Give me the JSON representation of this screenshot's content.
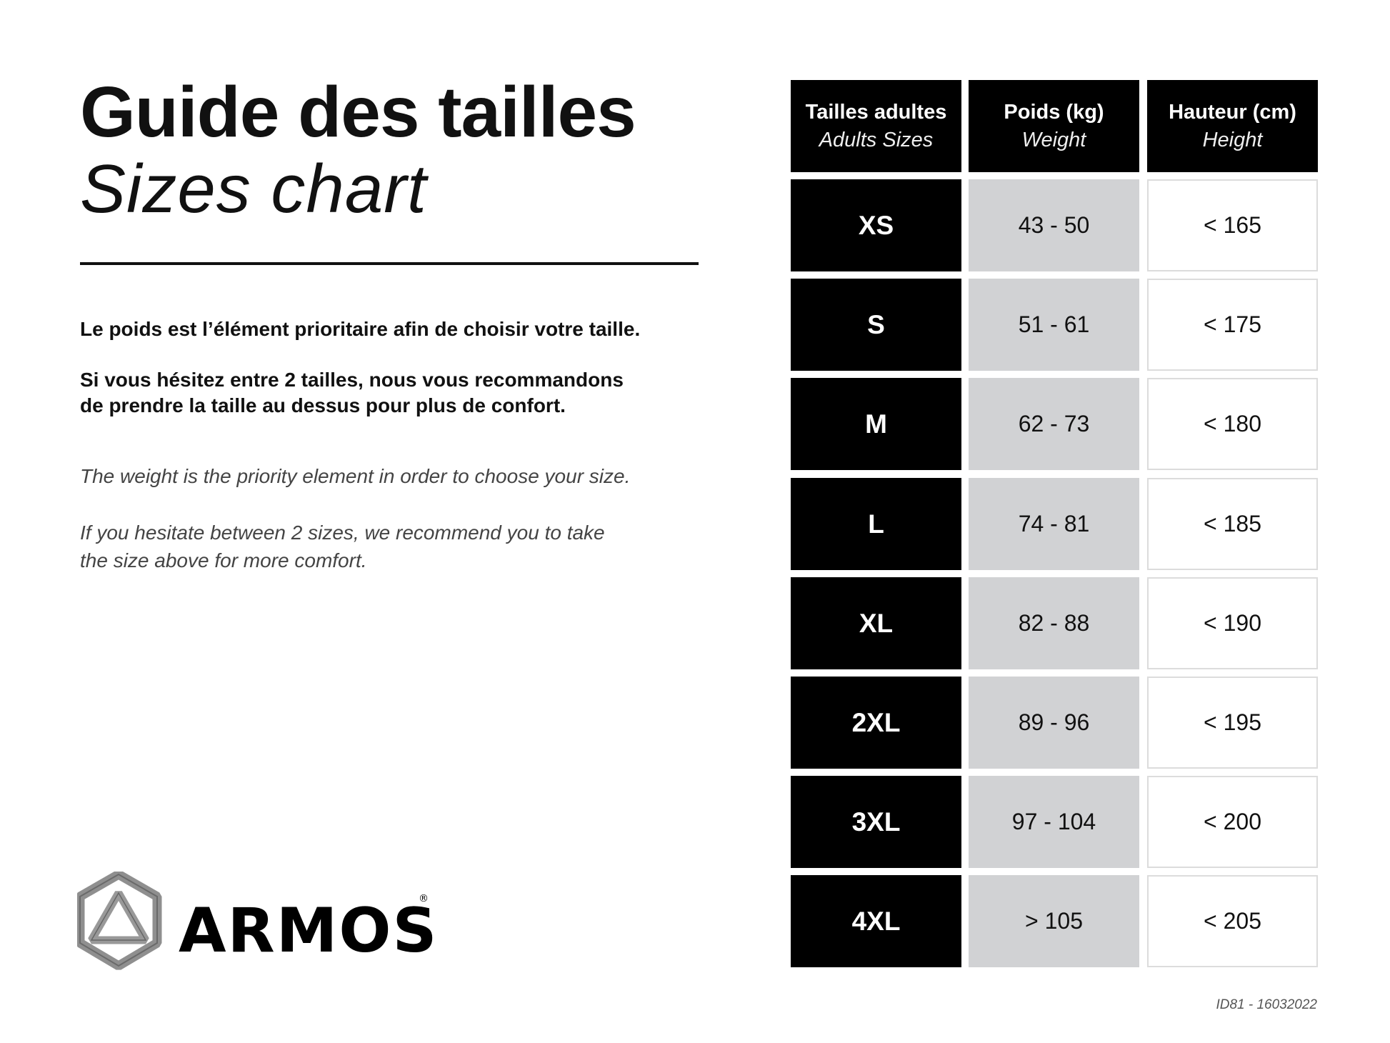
{
  "title": "Guide des tailles",
  "subtitle": "Sizes chart",
  "text_fr": {
    "p1": "Le poids est l’élément prioritaire afin de choisir votre taille.",
    "p2_line1": "Si vous hésitez entre 2 tailles, nous vous recommandons",
    "p2_line2": "de prendre la taille au dessus pour plus de confort."
  },
  "text_en": {
    "p1": "The weight is the priority element in order to choose your size.",
    "p2_line1": "If you hesitate between 2 sizes, we recommend you to take",
    "p2_line2": "the size above for more comfort."
  },
  "logo": {
    "text": "ARMOS",
    "registered": "®",
    "icon": "hexagon-triangle-logo-icon"
  },
  "footer": "ID81 - 16032022",
  "table": {
    "headers": [
      {
        "fr": "Tailles adultes",
        "en": "Adults Sizes"
      },
      {
        "fr": "Poids (kg)",
        "en": "Weight"
      },
      {
        "fr": "Hauteur (cm)",
        "en": "Height"
      }
    ],
    "rows": [
      {
        "size": "XS",
        "weight": "43 - 50",
        "height": "< 165"
      },
      {
        "size": "S",
        "weight": "51 - 61",
        "height": "< 175"
      },
      {
        "size": "M",
        "weight": "62 - 73",
        "height": "< 180"
      },
      {
        "size": "L",
        "weight": "74 - 81",
        "height": "< 185"
      },
      {
        "size": "XL",
        "weight": "82 - 88",
        "height": "< 190"
      },
      {
        "size": "2XL",
        "weight": "89 - 96",
        "height": "< 195"
      },
      {
        "size": "3XL",
        "weight": "97 - 104",
        "height": "< 200"
      },
      {
        "size": "4XL",
        "weight": "> 105",
        "height": "< 205"
      }
    ]
  },
  "colors": {
    "header_bg": "#000000",
    "weight_bg": "#d1d2d4",
    "height_border": "#dcdcdc",
    "logo_gray": "#8a8a8a"
  }
}
